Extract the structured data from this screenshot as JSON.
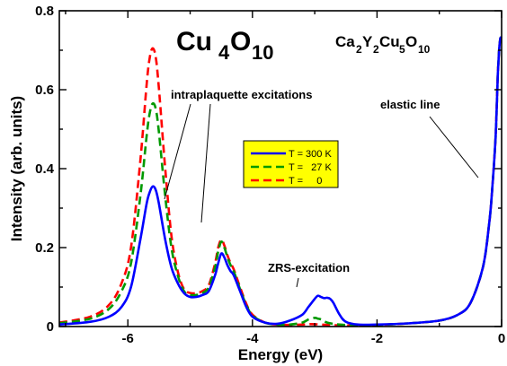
{
  "chart_data": {
    "type": "line",
    "title": "",
    "xlabel": "Energy (eV)",
    "ylabel": "Intensity (arb. units)",
    "xlim": [
      -7.1,
      0.0
    ],
    "ylim": [
      0.0,
      0.8
    ],
    "x_ticks": [
      -6,
      -4,
      -2,
      0
    ],
    "x_tick_labels": [
      "-6",
      "-4",
      "-2",
      "0"
    ],
    "y_ticks": [
      0,
      0.2,
      0.4,
      0.6,
      0.8
    ],
    "y_tick_labels": [
      "0",
      "0.2",
      "0.4",
      "0.6",
      "0.8"
    ],
    "grid": false,
    "legend_position": "center",
    "labels": {
      "compound_main": "Cu",
      "compound_main_sub1": "4",
      "compound_main_mid": "O",
      "compound_main_sub2": "10",
      "compound_full": {
        "p1": "Ca",
        "s1": "2",
        "p2": "Y",
        "s2": "2",
        "p3": "Cu",
        "s3": "5",
        "p4": "O",
        "s4": "10"
      },
      "intraplaquette": "intraplaquette excitations",
      "elastic": "elastic line",
      "zrs": "ZRS-excitation"
    },
    "series": [
      {
        "name": "T = 300 K",
        "color": "#0000ff",
        "dash": "solid",
        "x": [
          -7.1,
          -6.6,
          -6.3,
          -6.1,
          -5.95,
          -5.8,
          -5.7,
          -5.65,
          -5.6,
          -5.55,
          -5.5,
          -5.4,
          -5.3,
          -5.2,
          -5.1,
          -5.0,
          -4.9,
          -4.8,
          -4.7,
          -4.6,
          -4.55,
          -4.5,
          -4.45,
          -4.4,
          -4.35,
          -4.3,
          -4.2,
          -4.1,
          -4.0,
          -3.8,
          -3.6,
          -3.4,
          -3.2,
          -3.1,
          -3.0,
          -2.95,
          -2.9,
          -2.85,
          -2.8,
          -2.75,
          -2.7,
          -2.6,
          -2.5,
          -2.3,
          -2.0,
          -1.5,
          -1.0,
          -0.7,
          -0.5,
          -0.3,
          -0.2,
          -0.15,
          -0.1,
          -0.08,
          -0.06,
          -0.04,
          -0.02,
          0.0
        ],
        "y": [
          0.005,
          0.012,
          0.025,
          0.05,
          0.1,
          0.22,
          0.31,
          0.34,
          0.355,
          0.345,
          0.31,
          0.22,
          0.15,
          0.11,
          0.085,
          0.075,
          0.075,
          0.08,
          0.09,
          0.13,
          0.16,
          0.185,
          0.175,
          0.155,
          0.14,
          0.13,
          0.09,
          0.05,
          0.025,
          0.01,
          0.007,
          0.015,
          0.03,
          0.05,
          0.07,
          0.078,
          0.075,
          0.072,
          0.073,
          0.07,
          0.06,
          0.03,
          0.012,
          0.005,
          0.005,
          0.008,
          0.015,
          0.03,
          0.06,
          0.15,
          0.26,
          0.35,
          0.47,
          0.55,
          0.64,
          0.7,
          0.73,
          0.73
        ]
      },
      {
        "name": "T =   27 K",
        "color": "#009900",
        "dash": "9,5",
        "x": [
          -7.1,
          -6.6,
          -6.3,
          -6.1,
          -5.95,
          -5.8,
          -5.7,
          -5.65,
          -5.6,
          -5.55,
          -5.5,
          -5.4,
          -5.3,
          -5.2,
          -5.1,
          -5.0,
          -4.9,
          -4.8,
          -4.7,
          -4.6,
          -4.55,
          -4.5,
          -4.45,
          -4.4,
          -4.35,
          -4.3,
          -4.2,
          -4.1,
          -4.0,
          -3.8,
          -3.6,
          -3.4,
          -3.2,
          -3.1,
          -3.0,
          -2.95,
          -2.9,
          -2.8,
          -2.6,
          -2.3,
          -2.0,
          -1.5,
          -1.0,
          -0.7,
          -0.5,
          -0.3,
          -0.2,
          -0.15,
          -0.1,
          -0.08,
          -0.06,
          -0.04,
          -0.02,
          0.0
        ],
        "y": [
          0.008,
          0.02,
          0.045,
          0.09,
          0.16,
          0.33,
          0.48,
          0.54,
          0.565,
          0.55,
          0.49,
          0.33,
          0.2,
          0.13,
          0.09,
          0.08,
          0.08,
          0.085,
          0.1,
          0.15,
          0.19,
          0.215,
          0.2,
          0.175,
          0.155,
          0.14,
          0.095,
          0.055,
          0.028,
          0.01,
          0.005,
          0.005,
          0.01,
          0.018,
          0.022,
          0.02,
          0.018,
          0.01,
          0.005,
          0.003,
          0.004,
          0.008,
          0.015,
          0.03,
          0.06,
          0.15,
          0.26,
          0.35,
          0.47,
          0.55,
          0.64,
          0.7,
          0.73,
          0.73
        ]
      },
      {
        "name": "T =     0",
        "color": "#ff0000",
        "dash": "9,5",
        "x": [
          -7.1,
          -6.6,
          -6.3,
          -6.1,
          -5.95,
          -5.8,
          -5.7,
          -5.65,
          -5.6,
          -5.55,
          -5.5,
          -5.4,
          -5.3,
          -5.2,
          -5.1,
          -5.0,
          -4.9,
          -4.8,
          -4.7,
          -4.6,
          -4.55,
          -4.5,
          -4.45,
          -4.4,
          -4.35,
          -4.3,
          -4.2,
          -4.1,
          -4.0,
          -3.8,
          -3.6,
          -3.4,
          -3.2,
          -3.1,
          -3.0,
          -2.9,
          -2.8,
          -2.6,
          -2.3,
          -2.0,
          -1.5,
          -1.0,
          -0.7,
          -0.5,
          -0.3,
          -0.2,
          -0.15,
          -0.1,
          -0.08,
          -0.06,
          -0.04,
          -0.02,
          0.0
        ],
        "y": [
          0.01,
          0.025,
          0.055,
          0.11,
          0.2,
          0.42,
          0.61,
          0.68,
          0.705,
          0.68,
          0.6,
          0.4,
          0.23,
          0.14,
          0.095,
          0.085,
          0.085,
          0.09,
          0.105,
          0.16,
          0.2,
          0.22,
          0.205,
          0.18,
          0.16,
          0.145,
          0.1,
          0.058,
          0.03,
          0.01,
          0.005,
          0.004,
          0.005,
          0.006,
          0.006,
          0.005,
          0.004,
          0.003,
          0.003,
          0.004,
          0.008,
          0.015,
          0.03,
          0.06,
          0.15,
          0.26,
          0.35,
          0.47,
          0.55,
          0.64,
          0.7,
          0.73,
          0.73
        ]
      }
    ],
    "legend_bg": "#ffff00"
  }
}
